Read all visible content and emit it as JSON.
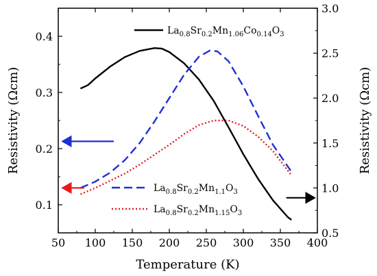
{
  "chart_data": {
    "type": "line",
    "title": "",
    "xlabel": "Temperature (K)",
    "ylabel": "Resistivity (Ωcm)",
    "y2label": "Resistivity (Ωcm)",
    "xlim": [
      50,
      400
    ],
    "ylim": [
      0.05,
      0.45
    ],
    "y2lim": [
      0.5,
      3.0
    ],
    "xticks": [
      "50",
      "100",
      "150",
      "200",
      "250",
      "300",
      "350",
      "400"
    ],
    "yticks": [
      "0.1",
      "0.2",
      "0.3",
      "0.4"
    ],
    "y2ticks": [
      "0.5",
      "1.0",
      "1.5",
      "2.0",
      "2.5",
      "3.0"
    ],
    "grid": false,
    "legend_position": "top-right and bottom-center",
    "series": [
      {
        "name": "La0.8Sr0.2Mn1.06Co0.14O3",
        "legend": [
          {
            "t": "La",
            "s": false
          },
          {
            "t": "0.8",
            "s": true
          },
          {
            "t": "Sr",
            "s": false
          },
          {
            "t": "0.2",
            "s": true
          },
          {
            "t": "Mn",
            "s": false
          },
          {
            "t": "1.06",
            "s": true
          },
          {
            "t": "Co",
            "s": false
          },
          {
            "t": "0.14",
            "s": true
          },
          {
            "t": "O",
            "s": false
          },
          {
            "t": "3",
            "s": true
          }
        ],
        "axis": "left",
        "color": "#000000",
        "style": "solid",
        "x": [
          80,
          90,
          100,
          120,
          140,
          160,
          180,
          190,
          200,
          220,
          240,
          260,
          280,
          300,
          320,
          340,
          360,
          365
        ],
        "y": [
          0.307,
          0.313,
          0.325,
          0.346,
          0.363,
          0.374,
          0.379,
          0.378,
          0.372,
          0.352,
          0.323,
          0.285,
          0.238,
          0.19,
          0.146,
          0.108,
          0.078,
          0.073
        ]
      },
      {
        "name": "La0.8Sr0.2Mn1.1O3",
        "legend": [
          {
            "t": "La",
            "s": false
          },
          {
            "t": "0.8",
            "s": true
          },
          {
            "t": "Sr",
            "s": false
          },
          {
            "t": "0.2",
            "s": true
          },
          {
            "t": "Mn",
            "s": false
          },
          {
            "t": "1.1",
            "s": true
          },
          {
            "t": "O",
            "s": false
          },
          {
            "t": "3",
            "s": true
          }
        ],
        "axis": "right",
        "color": "#1f2fd6",
        "style": "dashed",
        "x": [
          80,
          100,
          120,
          140,
          160,
          180,
          200,
          220,
          240,
          255,
          265,
          280,
          300,
          320,
          340,
          365
        ],
        "y": [
          1.0,
          1.07,
          1.17,
          1.31,
          1.5,
          1.74,
          2.0,
          2.26,
          2.46,
          2.53,
          2.52,
          2.41,
          2.13,
          1.8,
          1.48,
          1.18
        ]
      },
      {
        "name": "La0.8Sr0.2Mn1.15O3",
        "legend": [
          {
            "t": "La",
            "s": false
          },
          {
            "t": "0.8",
            "s": true
          },
          {
            "t": "Sr",
            "s": false
          },
          {
            "t": "0.2",
            "s": true
          },
          {
            "t": "Mn",
            "s": false
          },
          {
            "t": "1.15",
            "s": true
          },
          {
            "t": "O",
            "s": false
          },
          {
            "t": "3",
            "s": true
          }
        ],
        "axis": "right",
        "color": "#e8191b",
        "style": "dotted",
        "x": [
          80,
          100,
          120,
          140,
          160,
          180,
          200,
          220,
          240,
          260,
          280,
          300,
          320,
          340,
          365
        ],
        "y": [
          0.93,
          1.0,
          1.08,
          1.16,
          1.26,
          1.37,
          1.48,
          1.6,
          1.7,
          1.75,
          1.75,
          1.69,
          1.57,
          1.41,
          1.14
        ]
      }
    ],
    "annotations": [
      {
        "name": "arrow-blue",
        "color": "#1f2fd6",
        "direction": "left",
        "x_from": 125,
        "x_to": 56,
        "y": 0.213,
        "axis": "left"
      },
      {
        "name": "arrow-red",
        "color": "#e8191b",
        "direction": "left",
        "x_from": 85,
        "x_to": 56,
        "y": 0.13,
        "axis": "left"
      },
      {
        "name": "arrow-black",
        "color": "#000000",
        "direction": "right",
        "x_from": 358,
        "x_to": 396,
        "y": 0.89,
        "axis": "right"
      }
    ]
  }
}
